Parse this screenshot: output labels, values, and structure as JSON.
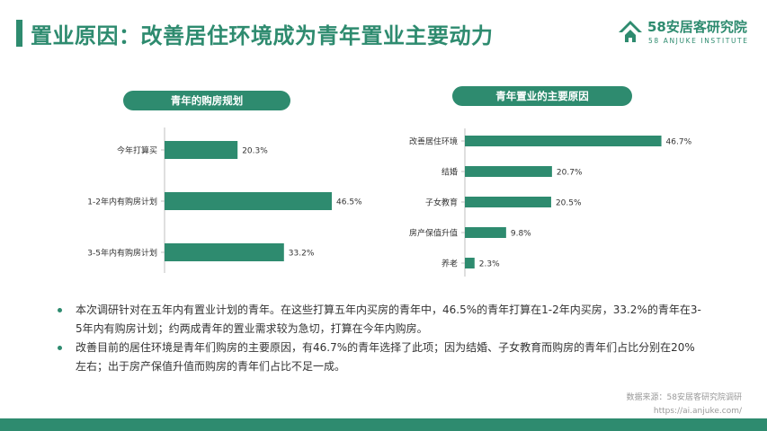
{
  "page": {
    "title": "置业原因：改善居住环境成为青年置业主要动力",
    "accent_color": "#2e8b6f"
  },
  "logo": {
    "icon": "house-logo-icon",
    "name": "58安居客研究院",
    "subtitle": "58 ANJUKE INSTITUTE"
  },
  "chart_data": [
    {
      "type": "bar",
      "orientation": "horizontal",
      "title": "青年的购房规划",
      "categories": [
        "今年打算买",
        "1-2年内有购房计划",
        "3-5年内有购房计划"
      ],
      "values": [
        20.3,
        46.5,
        33.2
      ],
      "value_labels": [
        "20.3%",
        "46.5%",
        "33.2%"
      ],
      "unit": "%",
      "xlim": [
        0,
        50
      ],
      "grid": false,
      "color": "#2e8b6f"
    },
    {
      "type": "bar",
      "orientation": "horizontal",
      "title": "青年置业的主要原因",
      "categories": [
        "改善居住环境",
        "结婚",
        "子女教育",
        "房产保值升值",
        "养老"
      ],
      "values": [
        46.7,
        20.7,
        20.5,
        9.8,
        2.3
      ],
      "value_labels": [
        "46.7%",
        "20.7%",
        "20.5%",
        "9.8%",
        "2.3%"
      ],
      "unit": "%",
      "xlim": [
        0,
        50
      ],
      "grid": false,
      "color": "#2e8b6f"
    }
  ],
  "bullets": [
    "本次调研针对在五年内有置业计划的青年。在这些打算五年内买房的青年中，46.5%的青年打算在1-2年内买房，33.2%的青年在3-5年内有购房计划；约两成青年的置业需求较为急切，打算在今年内购房。",
    "改善目前的居住环境是青年们购房的主要原因，有46.7%的青年选择了此项；因为结婚、子女教育而购房的青年们占比分别在20%左右；出于房产保值升值而购房的青年们占比不足一成。"
  ],
  "source": {
    "line1": "数据来源：58安居客研究院调研",
    "line2": "https://ai.anjuke.com/"
  }
}
